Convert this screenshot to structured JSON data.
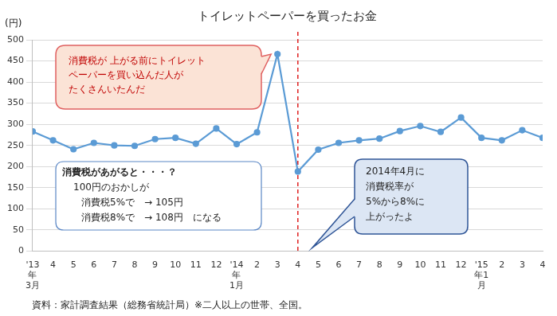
{
  "chart_data": {
    "type": "line",
    "title": "トイレットペーパーを買ったお金",
    "ylabel": "(円)",
    "categories": [
      "'13\n年\n3月",
      "4",
      "5",
      "6",
      "7",
      "8",
      "9",
      "10",
      "11",
      "12",
      "'14\n年\n1月",
      "2",
      "3",
      "4",
      "5",
      "6",
      "7",
      "8",
      "9",
      "10",
      "11",
      "12",
      "'15\n年1\n月",
      "2",
      "3",
      "4"
    ],
    "values": [
      283,
      262,
      241,
      256,
      250,
      249,
      265,
      268,
      254,
      290,
      253,
      281,
      466,
      188,
      240,
      256,
      262,
      266,
      284,
      296,
      282,
      316,
      268,
      262,
      286,
      268
    ],
    "color": "#5b9bd5",
    "marker": "circle",
    "ylim": [
      0,
      500
    ],
    "yticks": [
      0,
      50,
      100,
      150,
      200,
      250,
      300,
      350,
      400,
      450,
      500
    ],
    "grid": true,
    "legend": false,
    "data_labels": false,
    "annotations": [
      {
        "text": "消費税が 上がる前にトイレット\nペーパーを買い込んだ人が\nたくさんいたんだ",
        "x": 12
      },
      {
        "text": "消費税があがると・・・？\n100円のおかしが\n消費税5%で　→ 105円\n消費税8%で　→ 108円　になる"
      },
      {
        "text": "2014年4月に\n消費税率が\n5%から8%に\n上がったよ",
        "x": 13
      }
    ],
    "source": "資料：家計調査結果（総務省統計局）※二人以上の世帯、全国。"
  }
}
